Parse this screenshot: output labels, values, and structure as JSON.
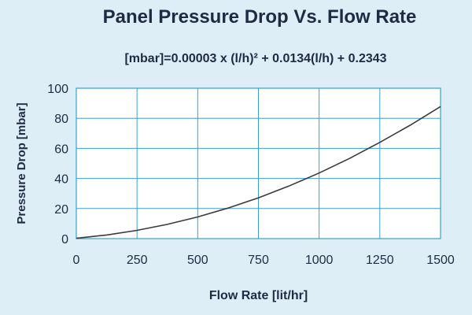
{
  "chart_data": {
    "type": "line",
    "title": "Panel Pressure Drop Vs. Flow Rate",
    "subtitle": "[mbar]=0.00003 x (l/h)² + 0.0134(l/h) + 0.2343",
    "xlabel": "Flow Rate [lit/hr]",
    "ylabel": "Pressure Drop [mbar]",
    "xlim": [
      0,
      1500
    ],
    "ylim": [
      0,
      100
    ],
    "x_ticks": [
      "0",
      "250",
      "500",
      "750",
      "1000",
      "1250",
      "1500"
    ],
    "y_ticks": [
      "0",
      "20",
      "40",
      "60",
      "80",
      "100"
    ],
    "grid": true,
    "series": [
      {
        "x": [
          0,
          125,
          250,
          375,
          500,
          625,
          750,
          875,
          1000,
          1125,
          1250,
          1375,
          1500
        ],
        "values": [
          0.2,
          2.4,
          5.5,
          9.5,
          14.4,
          20.3,
          27.1,
          34.9,
          43.6,
          53.3,
          64.0,
          75.4,
          87.8
        ]
      }
    ],
    "colors": {
      "line": "#3a3a3a",
      "grid": "#3aa0cf",
      "plot_bg": "#ffffff",
      "text": "#1f2a44"
    }
  }
}
